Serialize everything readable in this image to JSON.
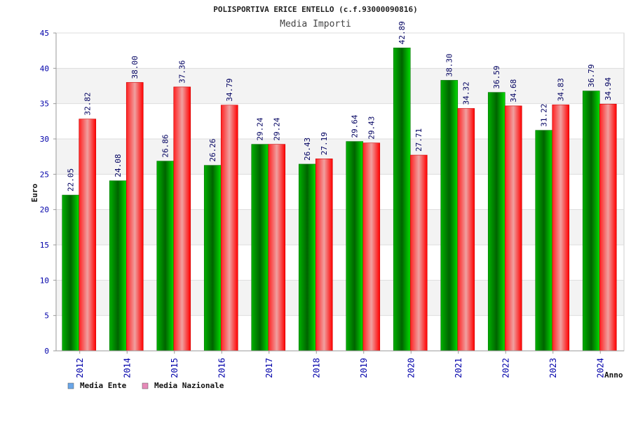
{
  "chart_data": {
    "type": "bar",
    "title": "POLISPORTIVA ERICE ENTELLO (c.f.93000090816)",
    "subtitle": "Media Importi",
    "xlabel": "Anno",
    "ylabel": "Euro",
    "ylim": [
      0,
      45
    ],
    "yticks": [
      0,
      5,
      10,
      15,
      20,
      25,
      30,
      35,
      40,
      45
    ],
    "grid": true,
    "legend_position": "bottom-left",
    "categories": [
      "2012",
      "2014",
      "2015",
      "2016",
      "2017",
      "2018",
      "2019",
      "2020",
      "2021",
      "2022",
      "2023",
      "2024"
    ],
    "series": [
      {
        "name": "Media Ente",
        "color": "#00a000",
        "legend_color": "#6aa6e8",
        "values": [
          22.05,
          24.08,
          26.86,
          26.26,
          29.24,
          26.43,
          29.64,
          42.89,
          38.3,
          36.59,
          31.22,
          36.79
        ],
        "labels": [
          "22.05",
          "24.08",
          "26.86",
          "26.26",
          "29.24",
          "26.43",
          "29.64",
          "42.89",
          "38.30",
          "36.59",
          "31.22",
          "36.79"
        ]
      },
      {
        "name": "Media Nazionale",
        "color": "#ff0000",
        "legend_color": "#e78ab9",
        "values": [
          32.82,
          38.0,
          37.36,
          34.79,
          29.24,
          27.19,
          29.43,
          27.71,
          34.32,
          34.68,
          34.83,
          34.94
        ],
        "labels": [
          "32.82",
          "38.00",
          "37.36",
          "34.79",
          "29.24",
          "27.19",
          "29.43",
          "27.71",
          "34.32",
          "34.68",
          "34.83",
          "34.94"
        ]
      }
    ]
  }
}
